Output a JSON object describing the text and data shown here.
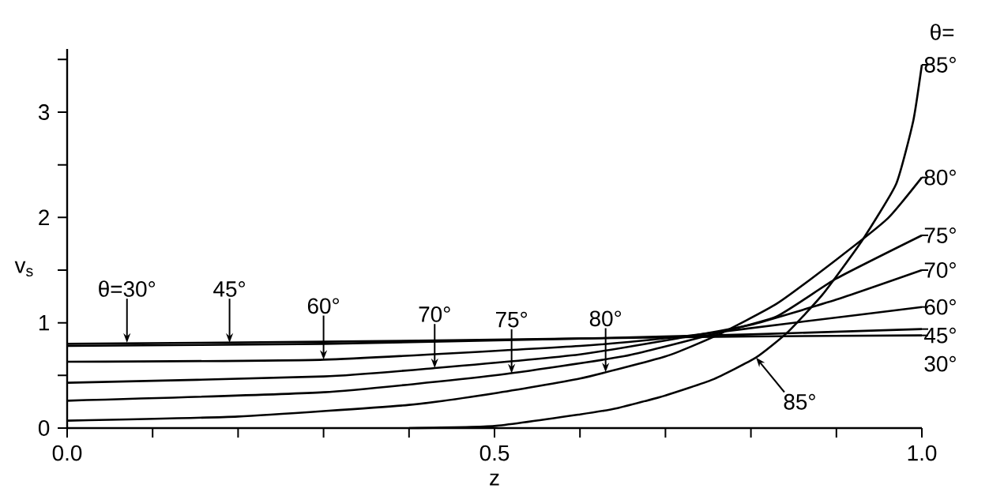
{
  "chart_data": {
    "type": "line",
    "xlabel": "z",
    "ylabel": "v$_{s}$",
    "legend_title": "θ=",
    "xlim": [
      0,
      1
    ],
    "ylim": [
      0,
      3.6
    ],
    "xticks": [
      {
        "value": 0,
        "label": "0.0"
      },
      {
        "value": 0.1,
        "label": null
      },
      {
        "value": 0.2,
        "label": null
      },
      {
        "value": 0.3,
        "label": null
      },
      {
        "value": 0.4,
        "label": null
      },
      {
        "value": 0.5,
        "label": "0.5"
      },
      {
        "value": 0.6,
        "label": null
      },
      {
        "value": 0.7,
        "label": null
      },
      {
        "value": 0.8,
        "label": null
      },
      {
        "value": 0.9,
        "label": null
      },
      {
        "value": 1,
        "label": "1.0"
      }
    ],
    "yticks": [
      0,
      {
        "value": 0.5,
        "label": null
      },
      1,
      {
        "value": 1.5,
        "label": null
      },
      2,
      {
        "value": 2.5,
        "label": null
      },
      3,
      {
        "value": 3.5,
        "label": null
      }
    ],
    "line_style": "solid",
    "legend": "right",
    "series": [
      {
        "name": "85°",
        "color": "#000000",
        "x": [
          0.4,
          0.5,
          0.6,
          0.644,
          0.7,
          0.755,
          0.806,
          0.843,
          0.884,
          0.93,
          0.97,
          0.99,
          1.0
        ],
        "values": [
          0,
          0.02,
          0.13,
          0.19,
          0.31,
          0.46,
          0.67,
          0.91,
          1.27,
          1.78,
          2.32,
          2.92,
          3.45
        ]
      },
      {
        "name": "80°",
        "color": "#000000",
        "x": [
          0,
          0.2,
          0.4,
          0.5,
          0.6,
          0.7,
          0.76,
          0.83,
          0.9,
          0.96,
          1.0
        ],
        "values": [
          0.07,
          0.11,
          0.22,
          0.33,
          0.47,
          0.68,
          0.88,
          1.18,
          1.6,
          1.99,
          2.38
        ]
      },
      {
        "name": "75°",
        "color": "#000000",
        "x": [
          0,
          0.3,
          0.5,
          0.65,
          0.75,
          0.83,
          0.9,
          1.0
        ],
        "values": [
          0.26,
          0.34,
          0.5,
          0.68,
          0.88,
          1.06,
          1.42,
          1.83
        ]
      },
      {
        "name": "70°",
        "color": "#000000",
        "x": [
          0,
          0.3,
          0.43,
          0.6,
          0.72,
          0.8,
          0.9,
          1.0
        ],
        "values": [
          0.43,
          0.49,
          0.57,
          0.7,
          0.86,
          0.98,
          1.22,
          1.5
        ]
      },
      {
        "name": "60°",
        "color": "#000000",
        "x": [
          0,
          0.3,
          0.6,
          0.72,
          0.85,
          1.0
        ],
        "values": [
          0.63,
          0.65,
          0.78,
          0.87,
          1.0,
          1.15
        ]
      },
      {
        "name": "45°",
        "color": "#000000",
        "x": [
          0,
          0.3,
          0.6,
          0.8,
          1.0
        ],
        "values": [
          0.78,
          0.8,
          0.85,
          0.89,
          0.94
        ]
      },
      {
        "name": "30°",
        "color": "#000000",
        "x": [
          0,
          0.3,
          0.6,
          0.8,
          1.0
        ],
        "values": [
          0.8,
          0.82,
          0.85,
          0.87,
          0.88
        ]
      }
    ],
    "annotations": [
      {
        "text": "θ=30°",
        "x": 0.07,
        "y": 0.81
      },
      {
        "text": "45°",
        "x": 0.19,
        "y": 0.81
      },
      {
        "text": "60°",
        "x": 0.3,
        "y": 0.65
      },
      {
        "text": "70°",
        "x": 0.43,
        "y": 0.57
      },
      {
        "text": "75°",
        "x": 0.52,
        "y": 0.52
      },
      {
        "text": "80°",
        "x": 0.63,
        "y": 0.53
      },
      {
        "text": "85°",
        "x": 0.806,
        "y": 0.67
      }
    ]
  }
}
